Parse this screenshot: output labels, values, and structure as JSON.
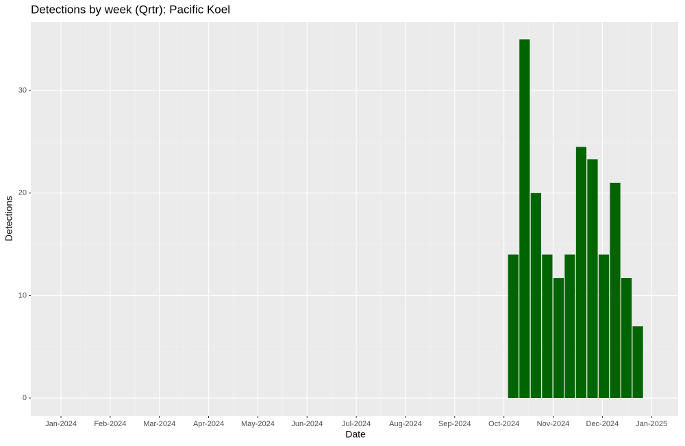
{
  "chart_data": {
    "type": "bar",
    "title": "Detections by week (Qrtr): Pacific Koel",
    "x_label": "Date",
    "y_label": "Detections",
    "x": [
      10.19,
      10.42,
      10.65,
      10.88,
      11.11,
      11.34,
      11.57,
      11.8,
      12.03,
      12.26,
      12.49,
      12.72
    ],
    "values": [
      14,
      35,
      20,
      14,
      11.7,
      14,
      24.5,
      23.3,
      14,
      21,
      11.7,
      7
    ],
    "color": "#006400",
    "xlim": [
      0.387,
      13.54
    ],
    "xticks": [
      {
        "value": 1,
        "label": "Jan-2024"
      },
      {
        "value": 2,
        "label": "Feb-2024"
      },
      {
        "value": 3,
        "label": "Mar-2024"
      },
      {
        "value": 4,
        "label": "Apr-2024"
      },
      {
        "value": 5,
        "label": "May-2024"
      },
      {
        "value": 6,
        "label": "Jun-2024"
      },
      {
        "value": 7,
        "label": "Jul-2024"
      },
      {
        "value": 8,
        "label": "Aug-2024"
      },
      {
        "value": 9,
        "label": "Sep-2024"
      },
      {
        "value": 10,
        "label": "Oct-2024"
      },
      {
        "value": 11,
        "label": "Nov-2024"
      },
      {
        "value": 12,
        "label": "Dec-2024"
      },
      {
        "value": 13,
        "label": "Jan-2025"
      }
    ],
    "ylim": [
      -1.74,
      36.7
    ],
    "yticks": [
      0,
      10,
      20,
      30
    ],
    "grid": true
  }
}
